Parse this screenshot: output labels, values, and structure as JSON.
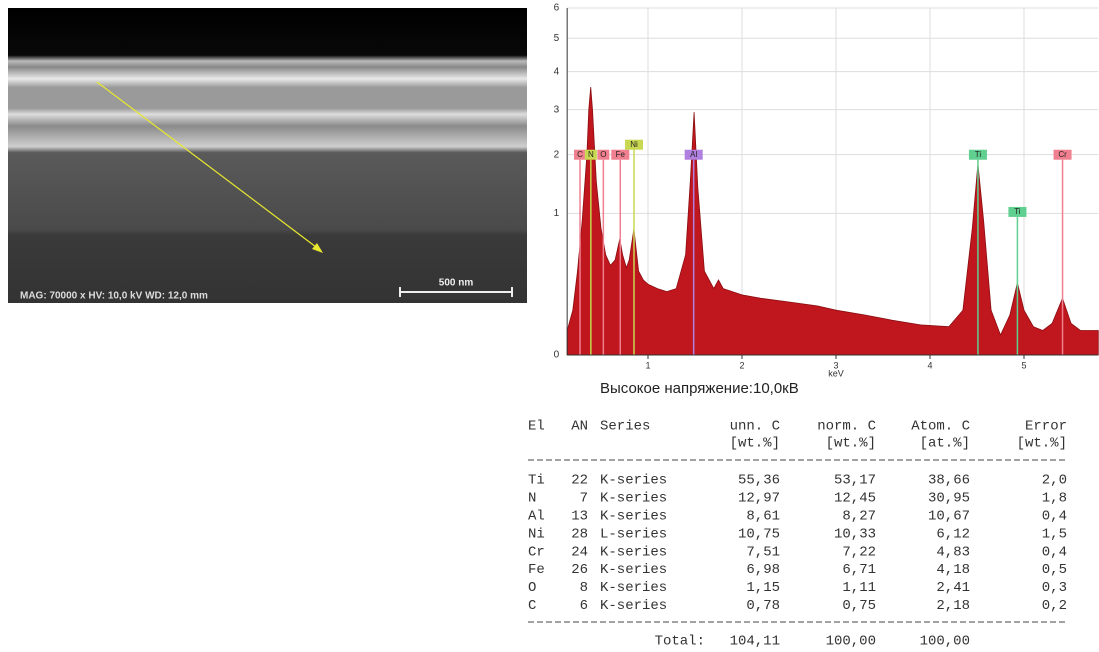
{
  "sem_image": {
    "caption": "MAG: 70000 x  HV: 10,0 kV  WD: 12,0 mm",
    "scale_label": "500 nm"
  },
  "chart_data": {
    "type": "area",
    "x_label": "keV",
    "scale": "sqrt",
    "xlim": [
      0.14,
      5.79
    ],
    "xticks": [
      1,
      2,
      3,
      4,
      5
    ],
    "ylim": [
      0,
      6
    ],
    "yticks": [
      0,
      1,
      2,
      3,
      4,
      5,
      6
    ],
    "grid": true,
    "x": [
      0.14,
      0.2,
      0.25,
      0.3,
      0.35,
      0.37,
      0.39,
      0.41,
      0.45,
      0.5,
      0.55,
      0.6,
      0.65,
      0.7,
      0.73,
      0.77,
      0.8,
      0.85,
      0.9,
      0.95,
      1.0,
      1.1,
      1.2,
      1.3,
      1.4,
      1.45,
      1.49,
      1.53,
      1.6,
      1.7,
      1.75,
      1.8,
      2.0,
      2.2,
      2.5,
      2.8,
      3.0,
      3.3,
      3.6,
      3.9,
      4.2,
      4.35,
      4.45,
      4.51,
      4.57,
      4.65,
      4.75,
      4.85,
      4.93,
      5.0,
      5.1,
      5.2,
      5.3,
      5.41,
      5.5,
      5.6,
      5.7,
      5.79
    ],
    "series": [
      {
        "color": "#c0161d",
        "values": [
          0.03,
          0.1,
          0.35,
          0.9,
          2.0,
          3.0,
          3.58,
          3.0,
          1.5,
          0.8,
          0.5,
          0.4,
          0.45,
          0.67,
          0.5,
          0.38,
          0.45,
          0.79,
          0.35,
          0.28,
          0.25,
          0.22,
          0.2,
          0.22,
          0.5,
          1.5,
          2.94,
          1.4,
          0.35,
          0.22,
          0.28,
          0.22,
          0.18,
          0.16,
          0.14,
          0.12,
          0.1,
          0.08,
          0.06,
          0.045,
          0.04,
          0.1,
          0.8,
          1.82,
          0.9,
          0.1,
          0.02,
          0.08,
          0.26,
          0.1,
          0.04,
          0.03,
          0.05,
          0.16,
          0.05,
          0.03,
          0.03,
          0.03
        ]
      }
    ],
    "peak_labels": [
      {
        "label": "C",
        "x": 0.277,
        "y": 1.9,
        "color": "#f08090"
      },
      {
        "label": "N",
        "x": 0.392,
        "y": 1.9,
        "color": "#c8d850"
      },
      {
        "label": "O",
        "x": 0.525,
        "y": 1.9,
        "color": "#f08090"
      },
      {
        "label": "Fe",
        "x": 0.705,
        "y": 1.9,
        "color": "#f08090"
      },
      {
        "label": "Ni",
        "x": 0.851,
        "y": 2.1,
        "color": "#c8d850"
      },
      {
        "label": "Al",
        "x": 1.486,
        "y": 1.9,
        "color": "#b080e0"
      },
      {
        "label": "Ti",
        "x": 4.51,
        "y": 1.9,
        "color": "#60d090"
      },
      {
        "label": "Ti",
        "x": 4.93,
        "y": 0.95,
        "color": "#60d090"
      },
      {
        "label": "Cr",
        "x": 5.41,
        "y": 1.9,
        "color": "#f08090"
      }
    ]
  },
  "voltage": "Высокое напряжение:10,0кВ",
  "table": {
    "header": [
      [
        "El",
        "AN",
        "Series",
        "unn. C",
        "norm. C",
        "Atom. C",
        "Error"
      ],
      [
        "",
        "",
        "",
        "[wt.%]",
        "[wt.%]",
        "[at.%]",
        "[wt.%]"
      ]
    ],
    "rows": [
      [
        "Ti",
        "22",
        "K-series",
        "55,36",
        "53,17",
        "38,66",
        "2,0"
      ],
      [
        "N",
        "7",
        "K-series",
        "12,97",
        "12,45",
        "30,95",
        "1,8"
      ],
      [
        "Al",
        "13",
        "K-series",
        "8,61",
        "8,27",
        "10,67",
        "0,4"
      ],
      [
        "Ni",
        "28",
        "L-series",
        "10,75",
        "10,33",
        "6,12",
        "1,5"
      ],
      [
        "Cr",
        "24",
        "K-series",
        "7,51",
        "7,22",
        "4,83",
        "0,4"
      ],
      [
        "Fe",
        "26",
        "K-series",
        "6,98",
        "6,71",
        "4,18",
        "0,5"
      ],
      [
        "O",
        "8",
        "K-series",
        "1,15",
        "1,11",
        "2,41",
        "0,3"
      ],
      [
        "C",
        "6",
        "K-series",
        "0,78",
        "0,75",
        "2,18",
        "0,2"
      ]
    ],
    "total": [
      "Total:",
      "104,11",
      "100,00",
      "100,00"
    ]
  }
}
